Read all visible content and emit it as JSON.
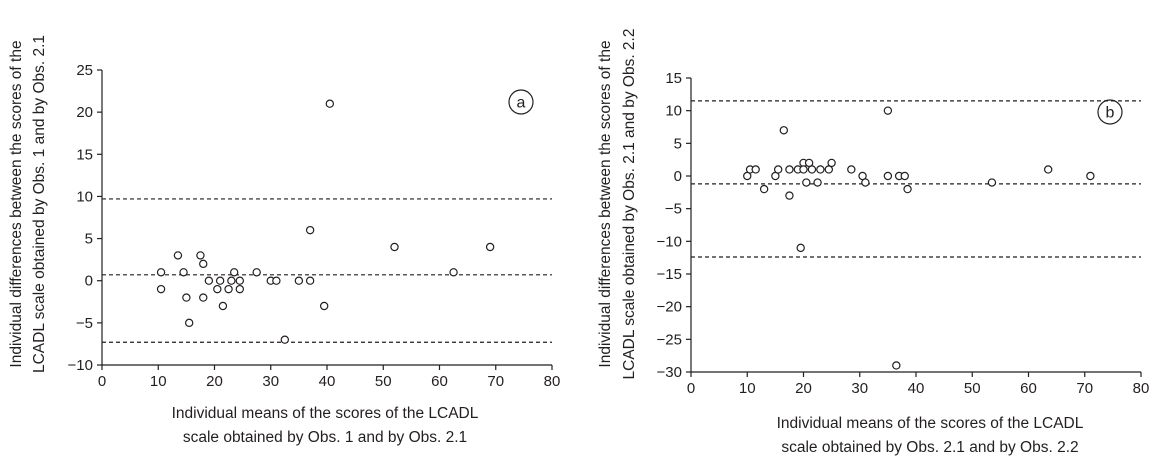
{
  "chart_data": [
    {
      "type": "scatter",
      "panel_label": "a",
      "title": "",
      "xlabel": [
        "Individual means of the scores of the LCADL",
        "scale obtained by Obs. 1 and by Obs. 2.1"
      ],
      "ylabel": [
        "Individual differences between the scores of the",
        "LCADL scale obtained by Obs. 1 and by Obs. 2.1"
      ],
      "xlim": [
        0,
        80
      ],
      "ylim": [
        -10,
        25
      ],
      "xticks": [
        0,
        10,
        20,
        30,
        40,
        50,
        60,
        70,
        80
      ],
      "yticks": [
        -10,
        -5,
        0,
        5,
        10,
        15,
        20,
        25
      ],
      "grid": false,
      "reference_lines": [
        9.7,
        0.7,
        -7.3
      ],
      "points": [
        [
          10.5,
          1
        ],
        [
          10.5,
          -1
        ],
        [
          13.5,
          3
        ],
        [
          14.5,
          1
        ],
        [
          15,
          -2
        ],
        [
          15.5,
          -5
        ],
        [
          17.5,
          3
        ],
        [
          18,
          2
        ],
        [
          18,
          -2
        ],
        [
          19,
          0
        ],
        [
          20.5,
          -1
        ],
        [
          21,
          0
        ],
        [
          21.5,
          -3
        ],
        [
          22.5,
          -1
        ],
        [
          23,
          0
        ],
        [
          23.5,
          1
        ],
        [
          24.5,
          0
        ],
        [
          24.5,
          -1
        ],
        [
          27.5,
          1
        ],
        [
          30,
          0
        ],
        [
          31,
          0
        ],
        [
          32.5,
          -7
        ],
        [
          35,
          0
        ],
        [
          37,
          6
        ],
        [
          37,
          0
        ],
        [
          39.5,
          -3
        ],
        [
          40.5,
          21
        ],
        [
          52,
          4
        ],
        [
          62.5,
          1
        ],
        [
          69,
          4
        ]
      ]
    },
    {
      "type": "scatter",
      "panel_label": "b",
      "title": "",
      "xlabel": [
        "Individual means of the scores of the LCADL",
        "scale obtained by Obs. 2.1 and by Obs. 2.2"
      ],
      "ylabel": [
        "Individual differences between the scores of the",
        "LCADL scale obtained by Obs. 2.1 and by Obs. 2.2"
      ],
      "xlim": [
        0,
        80
      ],
      "ylim": [
        -30,
        15
      ],
      "xticks": [
        0,
        10,
        20,
        30,
        40,
        50,
        60,
        70,
        80
      ],
      "yticks": [
        -30,
        -25,
        -20,
        -15,
        -10,
        -5,
        0,
        5,
        10,
        15
      ],
      "grid": false,
      "reference_lines": [
        11.5,
        -1.2,
        -12.4
      ],
      "points": [
        [
          10,
          0
        ],
        [
          10.5,
          1
        ],
        [
          11.5,
          1
        ],
        [
          13,
          -2
        ],
        [
          15,
          0
        ],
        [
          15.5,
          1
        ],
        [
          16.5,
          7
        ],
        [
          17.5,
          -3
        ],
        [
          17.5,
          1
        ],
        [
          19,
          1
        ],
        [
          19.5,
          -11
        ],
        [
          20,
          2
        ],
        [
          20,
          1
        ],
        [
          20.5,
          -1
        ],
        [
          21,
          2
        ],
        [
          21.5,
          1
        ],
        [
          22.5,
          -1
        ],
        [
          23,
          1
        ],
        [
          24.5,
          1
        ],
        [
          25,
          2
        ],
        [
          28.5,
          1
        ],
        [
          30.5,
          0
        ],
        [
          31,
          -1
        ],
        [
          35,
          10
        ],
        [
          35,
          0
        ],
        [
          36.5,
          -29
        ],
        [
          37,
          0
        ],
        [
          38,
          0
        ],
        [
          38.5,
          -2
        ],
        [
          53.5,
          -1
        ],
        [
          63.5,
          1
        ],
        [
          71,
          0
        ]
      ]
    }
  ]
}
